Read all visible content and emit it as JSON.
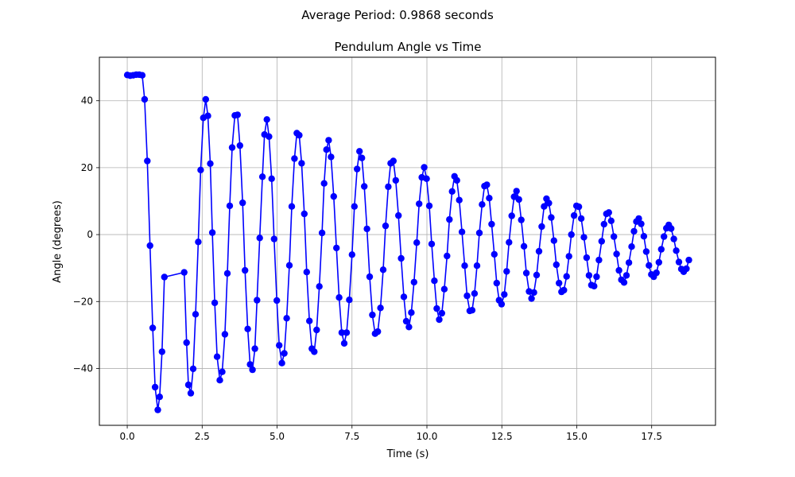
{
  "suptitle": "Average Period: 0.9868 seconds",
  "chart_data": {
    "type": "line",
    "title": "Pendulum Angle vs Time",
    "xlabel": "Time (s)",
    "ylabel": "Angle (degrees)",
    "xlim": [
      -0.93,
      19.63
    ],
    "ylim": [
      -57.0,
      53.0
    ],
    "xticks": [
      0.0,
      2.5,
      5.0,
      7.5,
      10.0,
      12.5,
      15.0,
      17.5
    ],
    "xtick_labels": [
      "0.0",
      "2.5",
      "5.0",
      "7.5",
      "10.0",
      "12.5",
      "15.0",
      "17.5"
    ],
    "yticks": [
      -40,
      -20,
      0,
      20,
      40
    ],
    "ytick_labels": [
      "−40",
      "−20",
      "0",
      "20",
      "40"
    ],
    "grid": true,
    "series": [
      {
        "color": "#0000ff",
        "marker": "circle",
        "points": [
          [
            0.0,
            47.7
          ],
          [
            0.1,
            47.5
          ],
          [
            0.2,
            47.6
          ],
          [
            0.3,
            47.8
          ],
          [
            0.4,
            47.8
          ],
          [
            0.5,
            47.6
          ],
          [
            0.58,
            40.4
          ],
          [
            0.67,
            22.0
          ],
          [
            0.76,
            -3.3
          ],
          [
            0.85,
            -27.9
          ],
          [
            0.93,
            -45.6
          ],
          [
            1.02,
            -52.4
          ],
          [
            1.08,
            -48.5
          ],
          [
            1.16,
            -35.0
          ],
          [
            1.24,
            -12.7
          ],
          [
            1.9,
            -11.3
          ],
          [
            1.98,
            -32.3
          ],
          [
            2.04,
            -44.9
          ],
          [
            2.12,
            -47.4
          ],
          [
            2.2,
            -40.1
          ],
          [
            2.28,
            -23.8
          ],
          [
            2.37,
            -2.2
          ],
          [
            2.45,
            19.3
          ],
          [
            2.54,
            34.9
          ],
          [
            2.62,
            40.4
          ],
          [
            2.69,
            35.5
          ],
          [
            2.77,
            21.2
          ],
          [
            2.84,
            0.6
          ],
          [
            2.92,
            -20.4
          ],
          [
            3.0,
            -36.5
          ],
          [
            3.09,
            -43.5
          ],
          [
            3.17,
            -41.0
          ],
          [
            3.26,
            -29.8
          ],
          [
            3.34,
            -11.6
          ],
          [
            3.42,
            8.6
          ],
          [
            3.5,
            26.0
          ],
          [
            3.59,
            35.6
          ],
          [
            3.68,
            35.8
          ],
          [
            3.76,
            26.6
          ],
          [
            3.85,
            9.5
          ],
          [
            3.93,
            -10.7
          ],
          [
            4.02,
            -28.2
          ],
          [
            4.1,
            -38.8
          ],
          [
            4.18,
            -40.4
          ],
          [
            4.26,
            -34.1
          ],
          [
            4.33,
            -19.6
          ],
          [
            4.42,
            -1.0
          ],
          [
            4.51,
            17.3
          ],
          [
            4.58,
            29.9
          ],
          [
            4.66,
            34.4
          ],
          [
            4.73,
            29.3
          ],
          [
            4.82,
            16.7
          ],
          [
            4.9,
            -1.3
          ],
          [
            4.99,
            -19.7
          ],
          [
            5.07,
            -33.1
          ],
          [
            5.16,
            -38.4
          ],
          [
            5.24,
            -35.5
          ],
          [
            5.32,
            -25.0
          ],
          [
            5.41,
            -9.2
          ],
          [
            5.49,
            8.4
          ],
          [
            5.58,
            22.7
          ],
          [
            5.66,
            30.3
          ],
          [
            5.74,
            29.7
          ],
          [
            5.82,
            21.3
          ],
          [
            5.91,
            6.2
          ],
          [
            5.99,
            -11.2
          ],
          [
            6.08,
            -25.8
          ],
          [
            6.16,
            -34.1
          ],
          [
            6.24,
            -35.0
          ],
          [
            6.32,
            -28.5
          ],
          [
            6.41,
            -15.5
          ],
          [
            6.5,
            0.5
          ],
          [
            6.57,
            15.3
          ],
          [
            6.65,
            25.4
          ],
          [
            6.72,
            28.2
          ],
          [
            6.8,
            23.2
          ],
          [
            6.89,
            11.4
          ],
          [
            6.98,
            -4.0
          ],
          [
            7.07,
            -18.8
          ],
          [
            7.16,
            -29.3
          ],
          [
            7.24,
            -32.5
          ],
          [
            7.32,
            -29.3
          ],
          [
            7.41,
            -19.5
          ],
          [
            7.5,
            -6.0
          ],
          [
            7.58,
            8.4
          ],
          [
            7.67,
            19.6
          ],
          [
            7.75,
            24.9
          ],
          [
            7.83,
            22.9
          ],
          [
            7.91,
            14.4
          ],
          [
            8.0,
            1.7
          ],
          [
            8.09,
            -12.6
          ],
          [
            8.18,
            -24.0
          ],
          [
            8.27,
            -29.6
          ],
          [
            8.36,
            -29.0
          ],
          [
            8.45,
            -21.9
          ],
          [
            8.54,
            -10.5
          ],
          [
            8.62,
            2.6
          ],
          [
            8.71,
            14.3
          ],
          [
            8.79,
            21.3
          ],
          [
            8.88,
            22.0
          ],
          [
            8.96,
            16.2
          ],
          [
            9.05,
            5.7
          ],
          [
            9.14,
            -7.1
          ],
          [
            9.23,
            -18.6
          ],
          [
            9.31,
            -25.9
          ],
          [
            9.4,
            -27.6
          ],
          [
            9.48,
            -23.3
          ],
          [
            9.57,
            -14.2
          ],
          [
            9.66,
            -2.4
          ],
          [
            9.74,
            9.2
          ],
          [
            9.83,
            17.1
          ],
          [
            9.91,
            20.1
          ],
          [
            9.99,
            16.7
          ],
          [
            10.08,
            8.6
          ],
          [
            10.16,
            -2.8
          ],
          [
            10.25,
            -13.8
          ],
          [
            10.33,
            -22.1
          ],
          [
            10.41,
            -25.4
          ],
          [
            10.5,
            -23.5
          ],
          [
            10.58,
            -16.3
          ],
          [
            10.67,
            -6.4
          ],
          [
            10.75,
            4.5
          ],
          [
            10.84,
            12.9
          ],
          [
            10.92,
            17.4
          ],
          [
            11.0,
            16.2
          ],
          [
            11.08,
            10.3
          ],
          [
            11.17,
            0.8
          ],
          [
            11.26,
            -9.3
          ],
          [
            11.34,
            -18.3
          ],
          [
            11.43,
            -22.8
          ],
          [
            11.51,
            -22.6
          ],
          [
            11.59,
            -17.6
          ],
          [
            11.67,
            -9.3
          ],
          [
            11.75,
            0.5
          ],
          [
            11.84,
            9.0
          ],
          [
            11.92,
            14.5
          ],
          [
            12.0,
            14.9
          ],
          [
            12.08,
            10.9
          ],
          [
            12.16,
            3.1
          ],
          [
            12.25,
            -5.9
          ],
          [
            12.33,
            -14.5
          ],
          [
            12.41,
            -19.6
          ],
          [
            12.49,
            -20.8
          ],
          [
            12.58,
            -17.9
          ],
          [
            12.66,
            -11.0
          ],
          [
            12.74,
            -2.3
          ],
          [
            12.83,
            5.6
          ],
          [
            12.91,
            11.3
          ],
          [
            12.99,
            13.0
          ],
          [
            13.07,
            10.5
          ],
          [
            13.15,
            4.4
          ],
          [
            13.24,
            -3.5
          ],
          [
            13.32,
            -11.5
          ],
          [
            13.41,
            -17.0
          ],
          [
            13.49,
            -19.1
          ],
          [
            13.57,
            -17.3
          ],
          [
            13.66,
            -12.1
          ],
          [
            13.74,
            -5.0
          ],
          [
            13.83,
            2.4
          ],
          [
            13.91,
            8.4
          ],
          [
            13.99,
            10.7
          ],
          [
            14.07,
            9.4
          ],
          [
            14.15,
            5.1
          ],
          [
            14.24,
            -1.8
          ],
          [
            14.32,
            -9.0
          ],
          [
            14.41,
            -14.5
          ],
          [
            14.49,
            -17.1
          ],
          [
            14.57,
            -16.6
          ],
          [
            14.66,
            -12.5
          ],
          [
            14.74,
            -6.5
          ],
          [
            14.82,
            0.0
          ],
          [
            14.91,
            5.7
          ],
          [
            14.99,
            8.6
          ],
          [
            15.07,
            8.3
          ],
          [
            15.15,
            4.8
          ],
          [
            15.24,
            -0.8
          ],
          [
            15.33,
            -6.9
          ],
          [
            15.41,
            -12.2
          ],
          [
            15.49,
            -15.1
          ],
          [
            15.58,
            -15.4
          ],
          [
            15.66,
            -12.6
          ],
          [
            15.74,
            -7.6
          ],
          [
            15.83,
            -2.0
          ],
          [
            15.91,
            3.1
          ],
          [
            15.99,
            6.2
          ],
          [
            16.07,
            6.6
          ],
          [
            16.15,
            4.1
          ],
          [
            16.24,
            -0.6
          ],
          [
            16.33,
            -5.8
          ],
          [
            16.41,
            -10.7
          ],
          [
            16.49,
            -13.5
          ],
          [
            16.58,
            -14.3
          ],
          [
            16.66,
            -12.2
          ],
          [
            16.74,
            -8.4
          ],
          [
            16.83,
            -3.6
          ],
          [
            16.91,
            1.0
          ],
          [
            16.99,
            3.9
          ],
          [
            17.07,
            4.8
          ],
          [
            17.15,
            3.2
          ],
          [
            17.24,
            -0.5
          ],
          [
            17.32,
            -5.1
          ],
          [
            17.41,
            -9.2
          ],
          [
            17.49,
            -11.9
          ],
          [
            17.57,
            -12.6
          ],
          [
            17.66,
            -11.4
          ],
          [
            17.74,
            -8.3
          ],
          [
            17.82,
            -4.4
          ],
          [
            17.91,
            -0.6
          ],
          [
            17.99,
            1.9
          ],
          [
            18.07,
            2.9
          ],
          [
            18.15,
            1.8
          ],
          [
            18.24,
            -1.3
          ],
          [
            18.32,
            -4.8
          ],
          [
            18.41,
            -8.2
          ],
          [
            18.49,
            -10.3
          ],
          [
            18.57,
            -11.1
          ],
          [
            18.66,
            -10.2
          ],
          [
            18.74,
            -7.6
          ]
        ]
      }
    ]
  }
}
